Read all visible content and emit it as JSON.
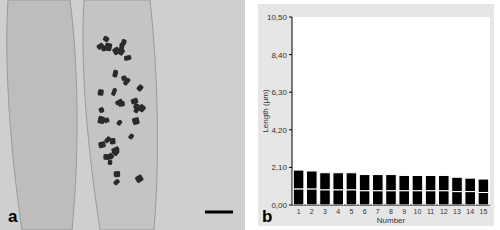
{
  "figure": {
    "panel_labels": [
      "a",
      "b"
    ]
  },
  "chart_data": {
    "type": "bar",
    "stacked": true,
    "x_label": "Number",
    "y_label": "Length (µm)",
    "categories": [
      "1",
      "2",
      "3",
      "4",
      "5",
      "6",
      "7",
      "8",
      "9",
      "10",
      "11",
      "12",
      "13",
      "14",
      "15"
    ],
    "series": [
      {
        "color": "#000000",
        "values": [
          0.9,
          0.9,
          0.85,
          0.85,
          0.85,
          0.8,
          0.8,
          0.8,
          0.8,
          0.8,
          0.8,
          0.8,
          0.75,
          0.75,
          0.7
        ]
      },
      {
        "color": "#000000",
        "values": [
          1.05,
          1.0,
          0.95,
          0.95,
          0.95,
          0.9,
          0.9,
          0.9,
          0.85,
          0.85,
          0.85,
          0.85,
          0.8,
          0.75,
          0.75
        ]
      }
    ],
    "ylim": [
      0,
      10.5
    ],
    "yticks": [
      {
        "value": 0,
        "label": "0,00"
      },
      {
        "value": 2.1,
        "label": "2,10"
      },
      {
        "value": 4.2,
        "label": "4,20"
      },
      {
        "value": 6.3,
        "label": "6,30"
      },
      {
        "value": 8.4,
        "label": "8,40"
      },
      {
        "value": 10.5,
        "label": "10,50"
      }
    ],
    "grid": false
  }
}
